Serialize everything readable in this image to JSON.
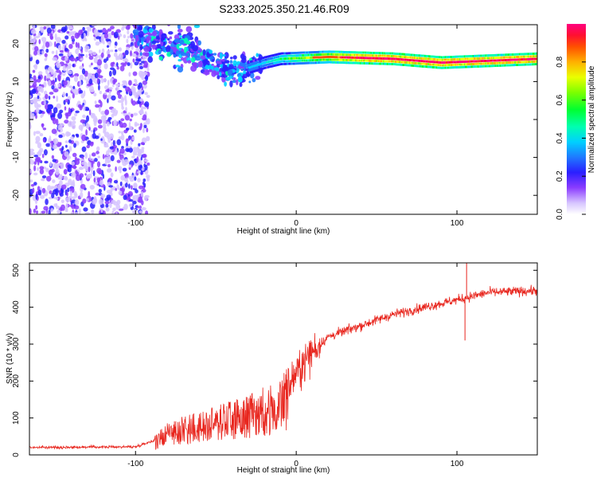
{
  "title": "S233.2025.350.21.46.R09",
  "chart_data": [
    {
      "type": "heatmap",
      "xlabel": "Height of straight line (km)",
      "ylabel": "Frequency (Hz)",
      "xlim": [
        -166,
        150
      ],
      "ylim": [
        -25,
        25
      ],
      "xticks": [
        -100,
        0,
        100
      ],
      "yticks": [
        -20,
        -10,
        0,
        10,
        20
      ],
      "colorbar": {
        "label": "Normalized spectral amplitude",
        "range": [
          0,
          1
        ],
        "ticks": [
          0.0,
          0.2,
          0.4,
          0.6,
          0.8
        ]
      },
      "ridge": {
        "description_points": [
          {
            "x": -95,
            "y": 19
          },
          {
            "x": -75,
            "y": 17
          },
          {
            "x": -55,
            "y": 15
          },
          {
            "x": -35,
            "y": 13
          },
          {
            "x": -20,
            "y": 15
          },
          {
            "x": -10,
            "y": 16
          },
          {
            "x": 20,
            "y": 16.5
          },
          {
            "x": 60,
            "y": 16
          },
          {
            "x": 90,
            "y": 15
          },
          {
            "x": 150,
            "y": 16
          }
        ]
      }
    },
    {
      "type": "line",
      "xlabel": "Height of straight line (km)",
      "ylabel": "SNR (10 * v/v)",
      "xlim": [
        -166,
        150
      ],
      "ylim": [
        0,
        520
      ],
      "xticks": [
        -100,
        0,
        100
      ],
      "yticks": [
        0,
        100,
        200,
        300,
        400,
        500
      ],
      "series": [
        {
          "name": "SNR",
          "color": "#e8261e",
          "trend": [
            {
              "x": -166,
              "y": 20
            },
            {
              "x": -100,
              "y": 22
            },
            {
              "x": -88,
              "y": 40
            },
            {
              "x": -80,
              "y": 70
            },
            {
              "x": -60,
              "y": 90
            },
            {
              "x": -40,
              "y": 110
            },
            {
              "x": -20,
              "y": 140
            },
            {
              "x": -10,
              "y": 150
            },
            {
              "x": 0,
              "y": 220
            },
            {
              "x": 10,
              "y": 280
            },
            {
              "x": 20,
              "y": 320
            },
            {
              "x": 40,
              "y": 350
            },
            {
              "x": 60,
              "y": 380
            },
            {
              "x": 80,
              "y": 400
            },
            {
              "x": 100,
              "y": 420
            },
            {
              "x": 120,
              "y": 440
            },
            {
              "x": 150,
              "y": 445
            }
          ],
          "spikes": [
            {
              "x": 105,
              "y": 310
            },
            {
              "x": 106,
              "y": 520
            }
          ]
        }
      ]
    }
  ]
}
